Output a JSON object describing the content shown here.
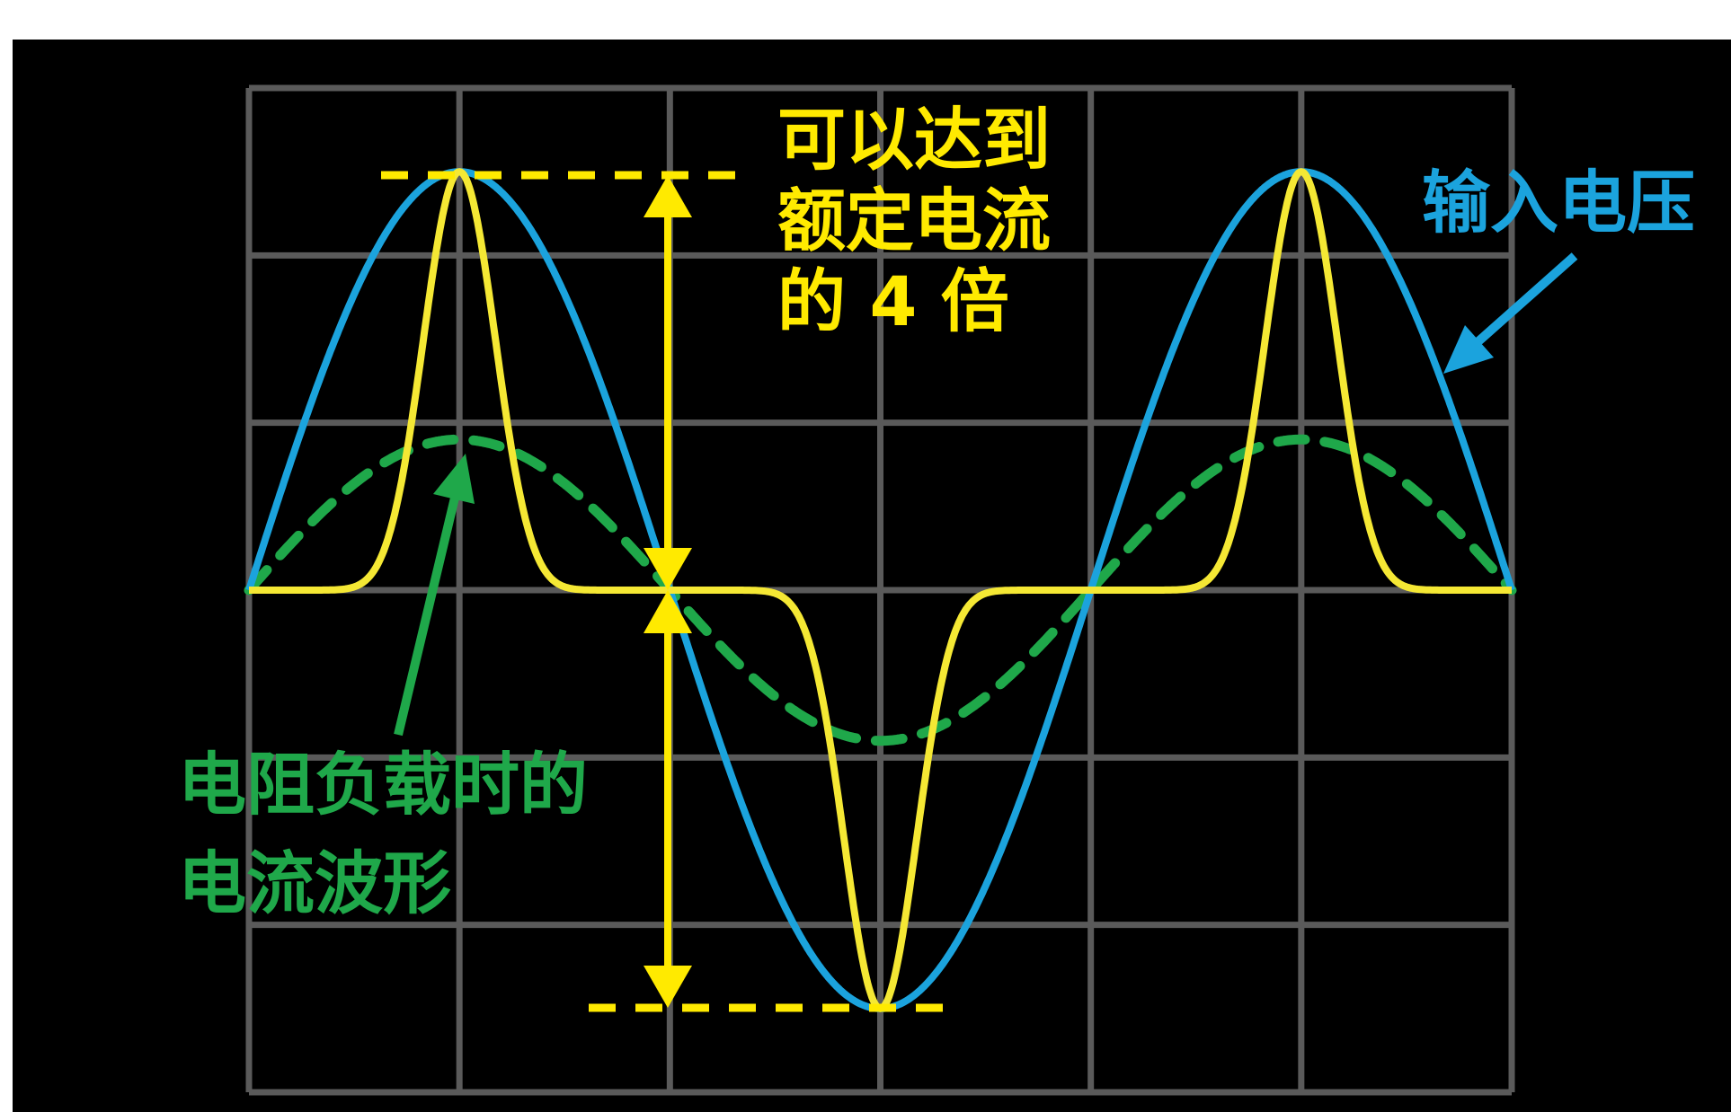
{
  "annotations": {
    "peak_note": [
      "可以达到",
      "额定电流",
      "的 4 倍"
    ],
    "input_voltage": "输入电压",
    "resistive_current": [
      "电阻负载时的",
      "电流波形"
    ]
  },
  "colors": {
    "background": "#000000",
    "grid": "#5a5a5a",
    "input_voltage": "#1ba3dd",
    "capacitor_current": "#f5e834",
    "resistive_current": "#1fa84a",
    "marker": "#ffea00"
  },
  "chart_data": {
    "type": "line",
    "grid": true,
    "grid_divisions": {
      "x": 6,
      "y": 6
    },
    "x": {
      "range": [
        0,
        6
      ],
      "unit": "divisions"
    },
    "y": {
      "range": [
        -3,
        3
      ],
      "unit": "divisions"
    },
    "series": [
      {
        "name": "输入电压",
        "shape": "sine",
        "amplitude": 2.5,
        "periods": 1.5,
        "style": "solid"
      },
      {
        "name": "电阻负载时的电流波形",
        "shape": "sine",
        "amplitude": 0.9,
        "periods": 1.5,
        "style": "dashed"
      },
      {
        "name": "",
        "shape": "pulse",
        "amplitude": 2.5,
        "periods": 1.5,
        "style": "solid"
      }
    ],
    "markers": {
      "ratio_label": "4"
    }
  }
}
